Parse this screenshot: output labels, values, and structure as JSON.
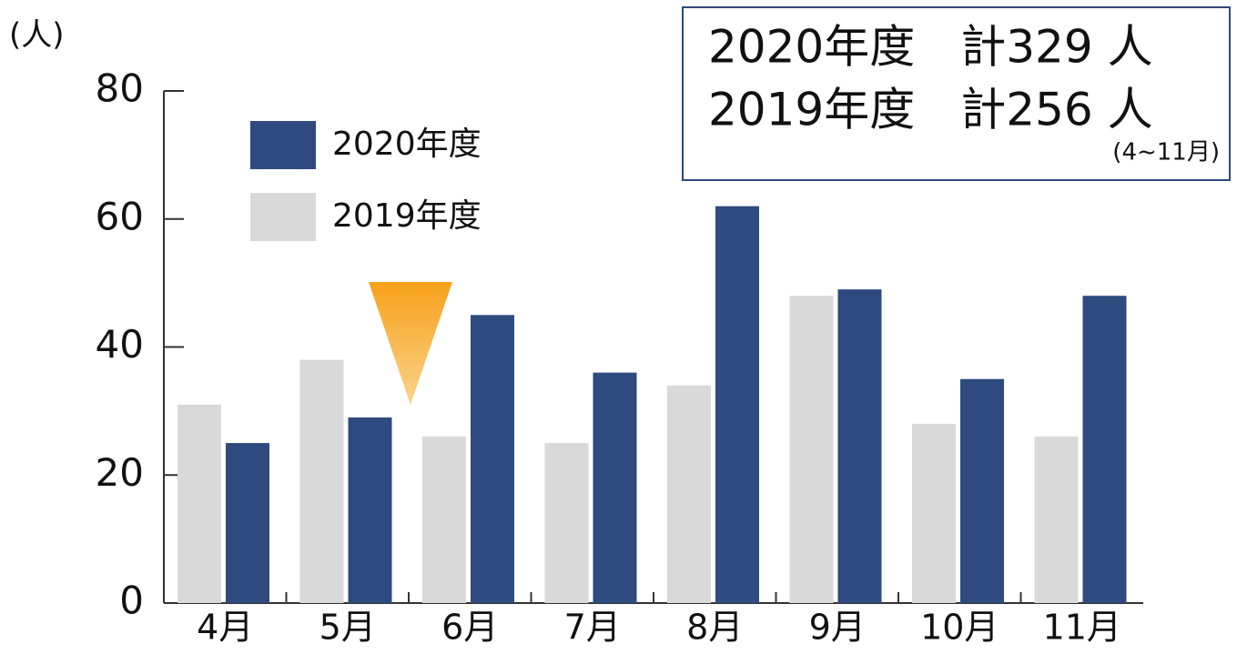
{
  "chart_data": {
    "type": "bar",
    "y_label": "(人)",
    "categories": [
      "4月",
      "5月",
      "6月",
      "7月",
      "8月",
      "9月",
      "10月",
      "11月"
    ],
    "series": [
      {
        "name": "2020年度",
        "color": "#2e4a7e",
        "values": [
          25,
          29,
          45,
          36,
          62,
          49,
          35,
          48
        ]
      },
      {
        "name": "2019年度",
        "color": "#d9d9d9",
        "values": [
          31,
          38,
          26,
          25,
          34,
          48,
          28,
          26
        ]
      }
    ],
    "ylim": [
      0,
      80
    ],
    "yticks": [
      0,
      20,
      40,
      60,
      80
    ],
    "grid": false,
    "annotations": [
      "2020年度　計329 人",
      "2019年度　計256 人",
      "(4~11月)"
    ]
  }
}
